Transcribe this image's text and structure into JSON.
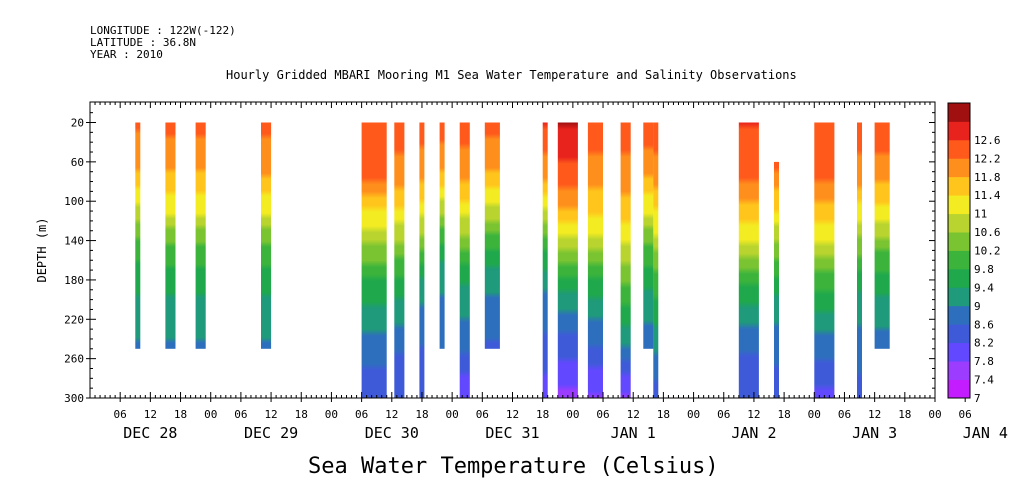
{
  "header": {
    "longitude": "LONGITUDE : 122W(-122)",
    "latitude": "LATITUDE : 36.8N",
    "year": "YEAR : 2010"
  },
  "chart_data": {
    "type": "heatmap",
    "title": "Hourly Gridded MBARI Mooring M1 Sea Water Temperature and Salinity Observations",
    "xlabel": "Sea Water Temperature (Celsius)",
    "ylabel": "DEPTH (m)",
    "xlim_hours": [
      0,
      168
    ],
    "x_origin_label": "DEC 28 00",
    "ylim": [
      300,
      0
    ],
    "y_ticks": [
      20,
      60,
      100,
      140,
      180,
      220,
      260,
      300
    ],
    "x_hour_ticks": [
      "06",
      "12",
      "18",
      "00",
      "06",
      "12",
      "18",
      "00",
      "06",
      "12",
      "18",
      "00",
      "06",
      "12",
      "18",
      "00",
      "06",
      "12",
      "18",
      "00",
      "06",
      "12",
      "18",
      "00",
      "06",
      "12",
      "18",
      "00",
      "06"
    ],
    "x_day_labels": [
      "DEC 28",
      "DEC 29",
      "DEC 30",
      "DEC 31",
      "JAN  1",
      "JAN  2",
      "JAN  3",
      "JAN  4"
    ],
    "colorbar": {
      "levels": [
        7,
        7.4,
        7.8,
        8.2,
        8.6,
        9,
        9.4,
        9.8,
        10.2,
        10.6,
        11,
        11.4,
        11.8,
        12.2,
        12.6
      ],
      "labels": [
        "7",
        "7.4",
        "7.8",
        "8.2",
        "8.6",
        "9",
        "9.4",
        "9.8",
        "10.2",
        "10.6",
        "11",
        "11.4",
        "11.8",
        "12.2",
        "12.6"
      ],
      "colors": [
        "#c21cff",
        "#9b3cff",
        "#6248ff",
        "#3f5ad9",
        "#2e6fbd",
        "#1f9a7a",
        "#1fa84c",
        "#3cb43c",
        "#7ac431",
        "#b9d42e",
        "#f4ec22",
        "#ffc51c",
        "#ff8f1c",
        "#ff5a1c",
        "#e8221c",
        "#a01010"
      ]
    },
    "columns": [
      {
        "start": 9,
        "end": 10,
        "top": 20,
        "bottom": 250,
        "profile": [
          11.9,
          11.4,
          10.4,
          9.4,
          8.9,
          8.5
        ]
      },
      {
        "start": 15,
        "end": 17,
        "top": 20,
        "bottom": 250,
        "profile": [
          11.9,
          11.5,
          10.6,
          9.5,
          8.9,
          8.5
        ]
      },
      {
        "start": 21,
        "end": 23,
        "top": 20,
        "bottom": 250,
        "profile": [
          11.9,
          11.5,
          10.6,
          9.5,
          8.9,
          8.5
        ]
      },
      {
        "start": 34,
        "end": 36,
        "top": 20,
        "bottom": 250,
        "profile": [
          11.9,
          11.6,
          10.6,
          9.5,
          8.9,
          8.5
        ]
      },
      {
        "start": 54,
        "end": 59,
        "top": 20,
        "bottom": 300,
        "profile": [
          12.1,
          11.8,
          10.5,
          9.2,
          8.4,
          7.9
        ]
      },
      {
        "start": 60.5,
        "end": 62.5,
        "top": 20,
        "bottom": 300,
        "profile": [
          12.0,
          11.6,
          10.4,
          9.1,
          8.3,
          7.8
        ]
      },
      {
        "start": 65.5,
        "end": 66.5,
        "top": 20,
        "bottom": 300,
        "profile": [
          12.0,
          11.5,
          10.2,
          8.8,
          8.2,
          7.8
        ]
      },
      {
        "start": 69.5,
        "end": 70.5,
        "top": 20,
        "bottom": 250,
        "profile": [
          12.0,
          11.5,
          10.2,
          9.0,
          8.5,
          8.2
        ]
      },
      {
        "start": 73.5,
        "end": 75.5,
        "top": 20,
        "bottom": 300,
        "profile": [
          12.0,
          11.5,
          10.2,
          8.9,
          8.4,
          7.4
        ]
      },
      {
        "start": 78.5,
        "end": 81.5,
        "top": 20,
        "bottom": 250,
        "profile": [
          11.9,
          11.5,
          10.4,
          9.1,
          8.5,
          8.1
        ]
      },
      {
        "start": 90,
        "end": 91,
        "top": 20,
        "bottom": 300,
        "profile": [
          12.3,
          11.4,
          9.8,
          8.6,
          8.1,
          7.6
        ]
      },
      {
        "start": 93,
        "end": 97,
        "top": 20,
        "bottom": 300,
        "profile": [
          12.6,
          12.0,
          10.8,
          9.0,
          8.0,
          7.3
        ]
      },
      {
        "start": 99,
        "end": 102,
        "top": 20,
        "bottom": 300,
        "profile": [
          12.0,
          11.6,
          10.7,
          9.2,
          8.2,
          7.3
        ]
      },
      {
        "start": 105.5,
        "end": 107.5,
        "top": 20,
        "bottom": 300,
        "profile": [
          12.0,
          11.6,
          10.8,
          9.7,
          8.6,
          7.3
        ]
      },
      {
        "start": 110,
        "end": 112,
        "top": 20,
        "bottom": 250,
        "profile": [
          12.0,
          11.6,
          10.6,
          9.5,
          8.8,
          8.3
        ]
      },
      {
        "start": 112,
        "end": 113,
        "top": 20,
        "bottom": 300,
        "profile": [
          12.0,
          11.6,
          10.6,
          9.5,
          8.8,
          7.9
        ]
      },
      {
        "start": 129,
        "end": 133,
        "top": 20,
        "bottom": 300,
        "profile": [
          12.2,
          11.8,
          10.8,
          9.3,
          8.3,
          7.8
        ]
      },
      {
        "start": 136,
        "end": 137,
        "top": 60,
        "bottom": 300,
        "profile": [
          12.0,
          11.0,
          9.8,
          8.8,
          8.3,
          7.9
        ]
      },
      {
        "start": 144,
        "end": 148,
        "top": 20,
        "bottom": 300,
        "profile": [
          12.1,
          11.8,
          10.8,
          9.4,
          8.4,
          7.6
        ]
      },
      {
        "start": 152.5,
        "end": 153.5,
        "top": 20,
        "bottom": 300,
        "profile": [
          12.0,
          11.6,
          10.3,
          9.0,
          8.4,
          8.0
        ]
      },
      {
        "start": 156,
        "end": 159,
        "top": 20,
        "bottom": 250,
        "profile": [
          12.0,
          11.7,
          10.8,
          9.6,
          8.9,
          8.4
        ]
      }
    ]
  }
}
